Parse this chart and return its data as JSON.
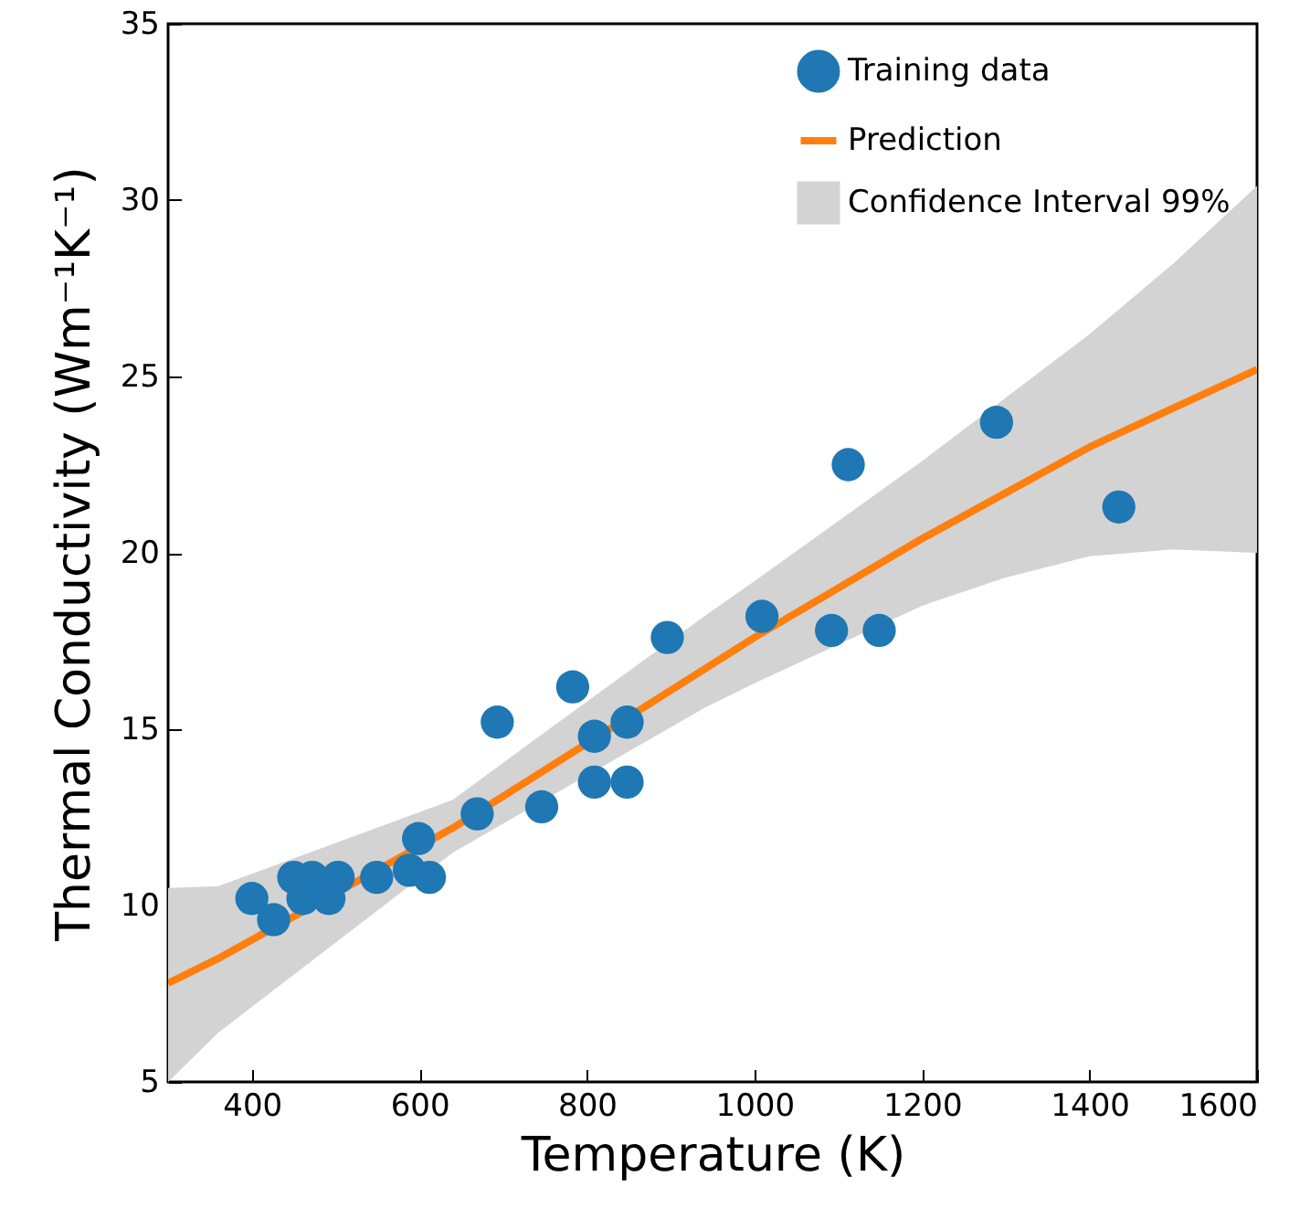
{
  "chart_data": {
    "type": "scatter",
    "xlabel": "Temperature (K)",
    "ylabel": "Thermal Conductivity (Wm⁻¹K⁻¹)",
    "xlim": [
      300,
      1600
    ],
    "xticks": [
      400,
      600,
      800,
      {
        "value": 1000,
        "label": "1000"
      },
      {
        "value": 1200,
        "label": "1200"
      },
      {
        "value": 1400,
        "label": "1400"
      },
      {
        "value": 1600,
        "label": "1600"
      }
    ],
    "ylim": [
      5,
      35
    ],
    "yticks": [
      5,
      10,
      15,
      20,
      25,
      30,
      35
    ],
    "grid": false,
    "legend": "top right",
    "annotations": [
      "Confidence Interval 99%"
    ],
    "series": [
      {
        "name": "Training data",
        "color": "#1f77b4",
        "marker": "circle",
        "x": [
          400,
          426,
          450,
          461,
          472,
          492,
          503,
          549,
          588,
          599,
          612,
          669,
          693,
          746,
          783,
          809,
          809,
          848,
          848,
          896,
          1009,
          1092,
          1112,
          1149,
          1289,
          1435
        ],
        "values": [
          10.2,
          9.6,
          10.8,
          10.2,
          10.8,
          10.2,
          10.8,
          10.8,
          11.0,
          11.9,
          10.8,
          12.6,
          15.2,
          12.8,
          16.2,
          14.8,
          13.5,
          15.2,
          13.5,
          17.6,
          18.2,
          17.8,
          22.5,
          17.8,
          23.7,
          21.3
        ]
      },
      {
        "name": "Prediction",
        "type": "line",
        "color": "#ff7f0e",
        "line_style": "solid",
        "x": [
          300,
          360,
          640,
          720,
          940,
          1000,
          1200,
          1300,
          1400,
          1500,
          1600
        ],
        "values": [
          7.8,
          8.5,
          12.2,
          13.4,
          16.7,
          17.6,
          20.4,
          21.7,
          23.0,
          24.1,
          25.2
        ],
        "lower": [
          5.0,
          6.4,
          11.5,
          12.6,
          15.6,
          16.3,
          18.5,
          19.3,
          19.9,
          20.1,
          20.0
        ],
        "upper": [
          10.5,
          10.55,
          13.0,
          14.4,
          18.2,
          19.2,
          22.6,
          24.4,
          26.2,
          28.2,
          30.4
        ]
      }
    ]
  }
}
